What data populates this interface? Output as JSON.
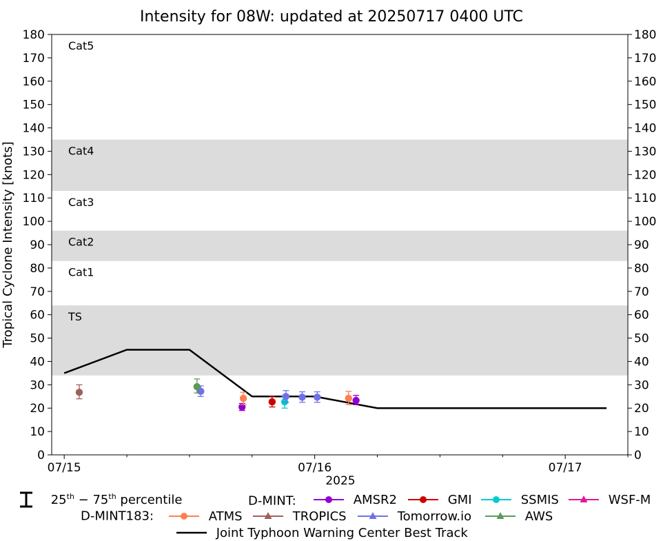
{
  "chart_data": {
    "type": "line",
    "title": "Intensity for 08W: updated at 20250717 0400 UTC",
    "ylabel": "Tropical Cyclone Intensity [knots]",
    "xlabel": "2025",
    "ylim": [
      0,
      180
    ],
    "yticks": [
      0,
      10,
      20,
      30,
      40,
      50,
      60,
      70,
      80,
      90,
      100,
      110,
      120,
      130,
      140,
      150,
      160,
      170,
      180
    ],
    "xlim_hours": [
      -1,
      45
    ],
    "xticks": [
      {
        "hour": 0,
        "label": "07/15"
      },
      {
        "hour": 20,
        "label": "07/16"
      },
      {
        "hour": 40,
        "label": "07/17"
      }
    ],
    "minor_xtick_hours": [
      5,
      10,
      15,
      25,
      30,
      35,
      45
    ],
    "bands": [
      {
        "label": "TS",
        "from": 34,
        "to": 64,
        "shaded": true
      },
      {
        "label": "Cat1",
        "from": 64,
        "to": 83,
        "shaded": false
      },
      {
        "label": "Cat2",
        "from": 83,
        "to": 96,
        "shaded": true
      },
      {
        "label": "Cat3",
        "from": 96,
        "to": 113,
        "shaded": false
      },
      {
        "label": "Cat4",
        "from": 113,
        "to": 135,
        "shaded": true
      },
      {
        "label": "Cat5",
        "from": 135,
        "to": 180,
        "shaded": false
      }
    ],
    "best_track": {
      "name": "Joint Typhoon Warning Center Best Track",
      "color": "#000000",
      "x": [
        0,
        5,
        10,
        15,
        20,
        25,
        30,
        35,
        40,
        43.3
      ],
      "y": [
        35,
        45,
        45,
        25,
        25,
        20,
        20,
        20,
        20,
        20
      ]
    },
    "series": [
      {
        "name": "AMSR2",
        "group": "D-MINT",
        "color": "#9400d3",
        "marker": "circle",
        "points": [
          {
            "x": 14.2,
            "y": 20.5,
            "lo": 19,
            "hi": 22
          },
          {
            "x": 23.3,
            "y": 23.3,
            "lo": 21.5,
            "hi": 25.5
          }
        ]
      },
      {
        "name": "GMI",
        "group": "D-MINT",
        "color": "#cc0000",
        "marker": "circle",
        "points": [
          {
            "x": 16.6,
            "y": 22.7,
            "lo": 20.5,
            "hi": 25
          }
        ]
      },
      {
        "name": "SSMIS",
        "group": "D-MINT",
        "color": "#00cdcd",
        "marker": "circle",
        "points": [
          {
            "x": 17.6,
            "y": 22.7,
            "lo": 20,
            "hi": 25
          }
        ]
      },
      {
        "name": "WSF-M",
        "group": "D-MINT",
        "color": "#e0189a",
        "marker": "triangle",
        "points": []
      },
      {
        "name": "ATMS",
        "group": "D-MINT183",
        "color": "#ff7f50",
        "marker": "circle",
        "points": [
          {
            "x": 14.3,
            "y": 24.2,
            "lo": 21.5,
            "hi": 26.8
          },
          {
            "x": 22.7,
            "y": 24.2,
            "lo": 21.5,
            "hi": 27.2
          }
        ]
      },
      {
        "name": "TROPICS",
        "group": "D-MINT183",
        "color": "#a0605a",
        "marker": "triangle",
        "points": [
          {
            "x": 1.2,
            "y": 26.8,
            "lo": 24,
            "hi": 30
          }
        ]
      },
      {
        "name": "Tomorrow.io",
        "group": "D-MINT183",
        "color": "#7070e8",
        "marker": "triangle",
        "points": [
          {
            "x": 10.9,
            "y": 27.2,
            "lo": 25,
            "hi": 29.5
          },
          {
            "x": 17.7,
            "y": 25,
            "lo": 22.5,
            "hi": 27.5
          },
          {
            "x": 19.0,
            "y": 24.7,
            "lo": 22.5,
            "hi": 27
          },
          {
            "x": 20.2,
            "y": 24.7,
            "lo": 22.5,
            "hi": 27
          }
        ]
      },
      {
        "name": "AWS",
        "group": "D-MINT183",
        "color": "#5a9a5a",
        "marker": "triangle",
        "points": [
          {
            "x": 10.6,
            "y": 29.2,
            "lo": 26.5,
            "hi": 32.5
          }
        ]
      }
    ]
  },
  "legend": {
    "percentile_label_prefix": "25",
    "percentile_sup1": "th",
    "percentile_mid": " − 75",
    "percentile_sup2": "th",
    "percentile_suffix": " percentile",
    "dmint_label": "D-MINT:",
    "dmint183_label": "D-MINT183:",
    "amsr2": "AMSR2",
    "gmi": "GMI",
    "ssmis": "SSMIS",
    "wsfm": "WSF-M",
    "atms": "ATMS",
    "tropics": "TROPICS",
    "tomorrow": "Tomorrow.io",
    "aws": "AWS",
    "best_track": "Joint Typhoon Warning Center Best Track"
  }
}
